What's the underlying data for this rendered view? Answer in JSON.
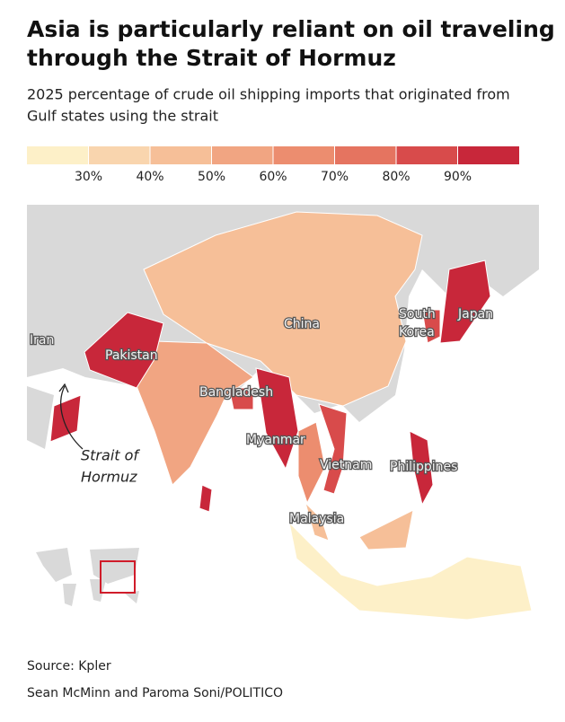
{
  "header": {
    "title": [
      "Asia is particularly reliant on oil traveling",
      "through the Strait of Hormuz"
    ],
    "subtitle": [
      "2025 percentage of crude oil shipping imports that originated from",
      "Gulf states using the strait"
    ]
  },
  "legend": {
    "colors": [
      "#fdf0c8",
      "#f9d5ae",
      "#f6bf98",
      "#f1a582",
      "#ec8d6f",
      "#e57460",
      "#d84b4b",
      "#c8273a"
    ],
    "ticks": [
      {
        "value": 30,
        "label": "30%"
      },
      {
        "value": 40,
        "label": "40%"
      },
      {
        "value": 50,
        "label": "50%"
      },
      {
        "value": 60,
        "label": "60%"
      },
      {
        "value": 70,
        "label": "70%"
      },
      {
        "value": 80,
        "label": "80%"
      },
      {
        "value": 90,
        "label": "90%"
      }
    ]
  },
  "map": {
    "labels": [
      "Iran",
      "Pakistan",
      "China",
      "South",
      "Korea",
      "Japan",
      "Bangladesh",
      "Myanmar",
      "Vietnam",
      "Philippines",
      "Malaysia"
    ],
    "annotation": [
      "Strait of",
      "Hormuz"
    ]
  },
  "footer": {
    "source": "Source: Kpler",
    "credit": "Sean McMinn and Paroma Soni/POLITICO"
  }
}
